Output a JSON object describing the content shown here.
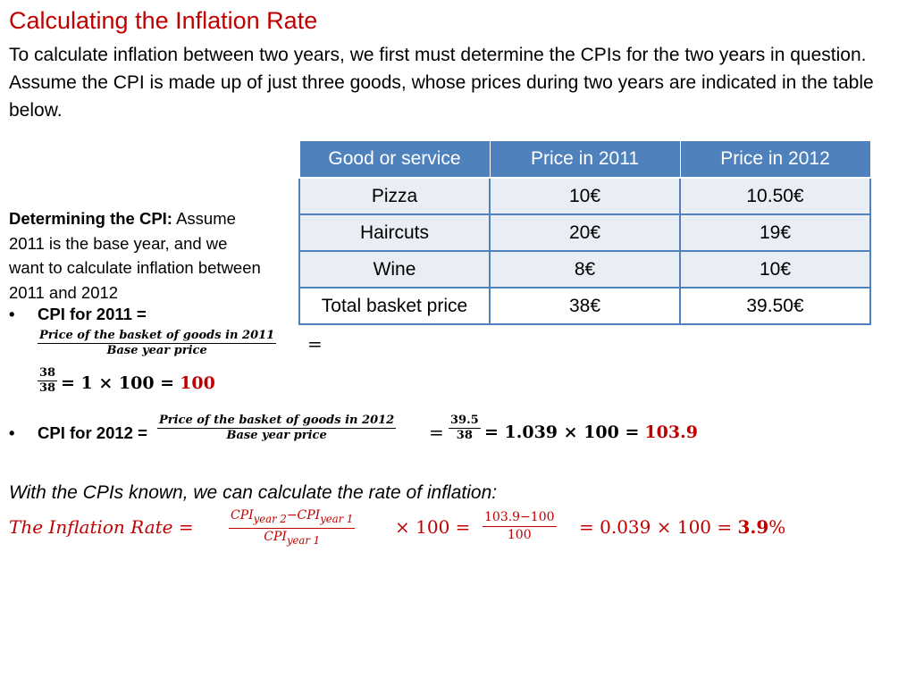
{
  "title": "Calculating the Inflation Rate",
  "intro": "To calculate inflation between two years, we first must determine the CPIs for the two years in question. Assume the CPI is made up of just three goods, whose prices during two years are indicated in the table below.",
  "table": {
    "headers": [
      "Good or service",
      "Price in 2011",
      "Price in 2012"
    ],
    "rows": [
      [
        "Pizza",
        "10€",
        "10.50€"
      ],
      [
        "Haircuts",
        "20€",
        "19€"
      ],
      [
        "Wine",
        "8€",
        "10€"
      ],
      [
        "Total basket price",
        "38€",
        "39.50€"
      ]
    ]
  },
  "determining": {
    "label": "Determining the CPI:",
    "text": " Assume 2011 is the base year, and we want to calculate inflation between 2011 and 2012"
  },
  "cpi2011": {
    "label": "CPI for 2011 =",
    "frac_num": "Price of the basket of goods in 2011",
    "frac_den": "Base year price",
    "eq": "=",
    "small_num": "38",
    "small_den": "38",
    "rest": "= 1 × 100 =",
    "result": "100"
  },
  "cpi2012": {
    "label": "CPI for 2012 =",
    "frac_num": "Price of the basket of goods in 2012",
    "frac_den": "Base year price",
    "eq": "=",
    "small_num": "39.5",
    "small_den": "38",
    "rest": "= 1.039 × 100 =",
    "result": "103.9"
  },
  "with_cpis": "With the CPIs known, we can calculate the rate of inflation:",
  "inflation": {
    "lhs": "The Inflation Rate =",
    "num_a": "CPI",
    "num_a_sub": "year 2",
    "num_minus": "−",
    "num_b": "CPI",
    "num_b_sub": "year 1",
    "den": "CPI",
    "den_sub": "year 1",
    "times": "× 100 =",
    "frac2_num": "103.9−100",
    "frac2_den": "100",
    "tail": "= 0.039 × 100 =",
    "result": "3.9",
    "percent": "%"
  },
  "colors": {
    "accent_red": "#c00000",
    "table_header": "#4f81bd",
    "table_shade": "#e9edf4"
  }
}
